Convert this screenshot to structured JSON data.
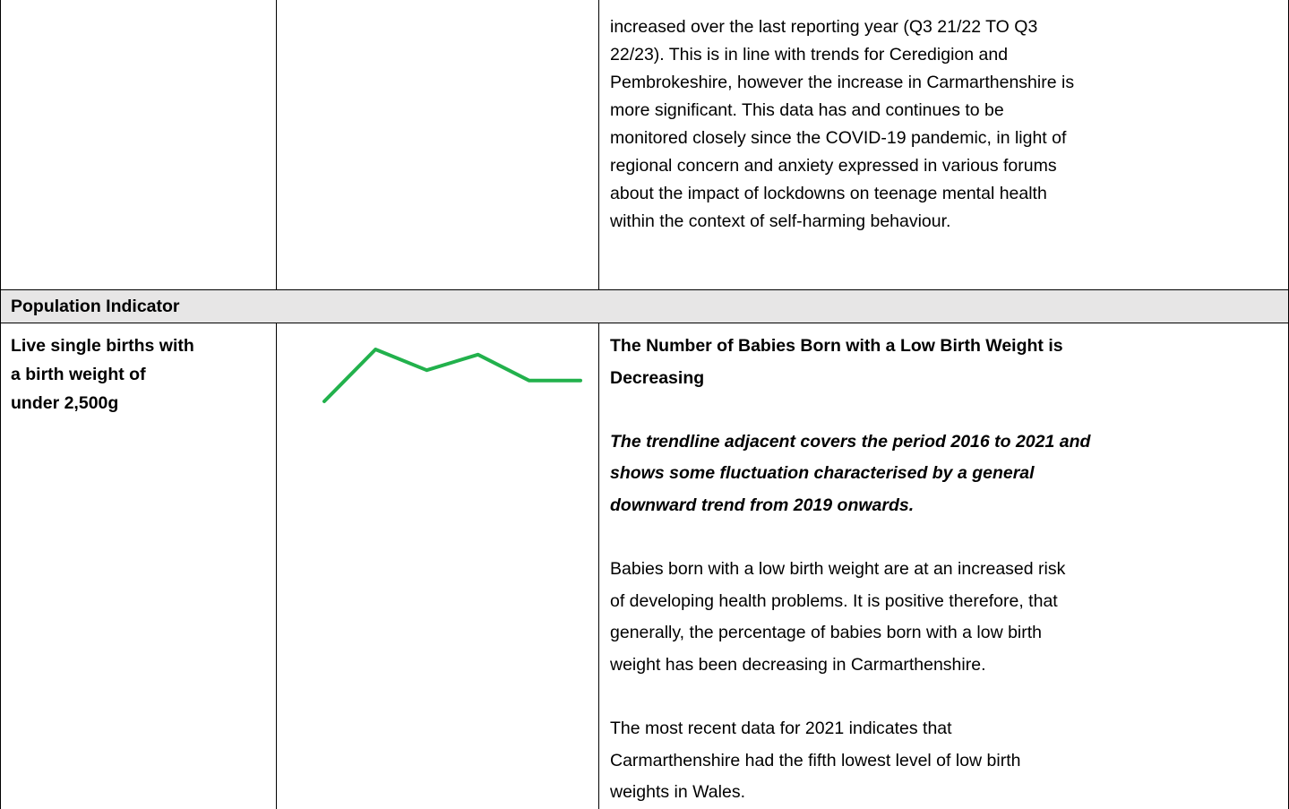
{
  "table": {
    "rows": [
      {
        "cells": [
          [],
          [],
          [
            "increased over the last reporting year (Q3 21/22 TO Q3",
            "22/23). This is in line with trends for Ceredigion and",
            "Pembrokeshire, however the increase in Carmarthenshire is",
            "more significant. This data has and continues to be",
            "monitored closely since the COVID-19 pandemic, in light of",
            "regional concern and anxiety expressed in various forums",
            "about the impact of lockdowns on teenage mental health",
            "within the context of self-harming behaviour."
          ]
        ]
      },
      {
        "section": "Population Indicator"
      },
      {
        "indicator": [
          "Live single births with",
          "a birth weight of",
          "under 2,500g"
        ],
        "trendline": {
          "type": "line",
          "color": "#22b14c",
          "values": [
            5.0,
            6.0,
            5.6,
            5.9,
            5.4,
            5.4
          ]
        },
        "heading": [
          "The Number of Babies Born with a Low Birth Weight is",
          "Decreasing"
        ],
        "summary": [
          "The trendline adjacent covers the period 2016 to 2021 and",
          "shows some fluctuation characterised by a general",
          "downward trend from 2019 onwards."
        ],
        "paragraphs": [
          [
            "Babies born with a low birth weight are at an increased risk",
            "of developing health problems. It is positive therefore, that",
            "generally, the percentage of babies born with a low birth",
            "weight has been decreasing in Carmarthenshire."
          ],
          [
            "The most recent data for 2021 indicates that",
            "Carmarthenshire had the fifth lowest level of low birth",
            "weights in Wales."
          ]
        ]
      }
    ]
  }
}
